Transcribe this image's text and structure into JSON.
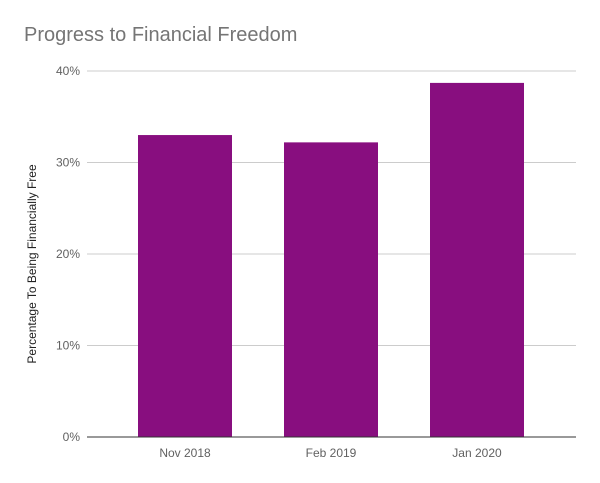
{
  "chart_data": {
    "type": "bar",
    "title": "Progress to Financial Freedom",
    "xlabel": "",
    "ylabel": "Percentage To Being Financially Free",
    "categories": [
      "Nov 2018",
      "Feb 2019",
      "Jan 2020"
    ],
    "values": [
      0.33,
      0.322,
      0.387
    ],
    "ylim": [
      0,
      0.4
    ],
    "yticks": [
      0,
      0.1,
      0.2,
      0.3,
      0.4
    ],
    "ytick_labels": [
      "0%",
      "10%",
      "20%",
      "30%",
      "40%"
    ],
    "grid": true,
    "legend": "none",
    "bar_color": "#880e7f",
    "grid_color": "#cccccc",
    "axis_color": "#333333"
  }
}
